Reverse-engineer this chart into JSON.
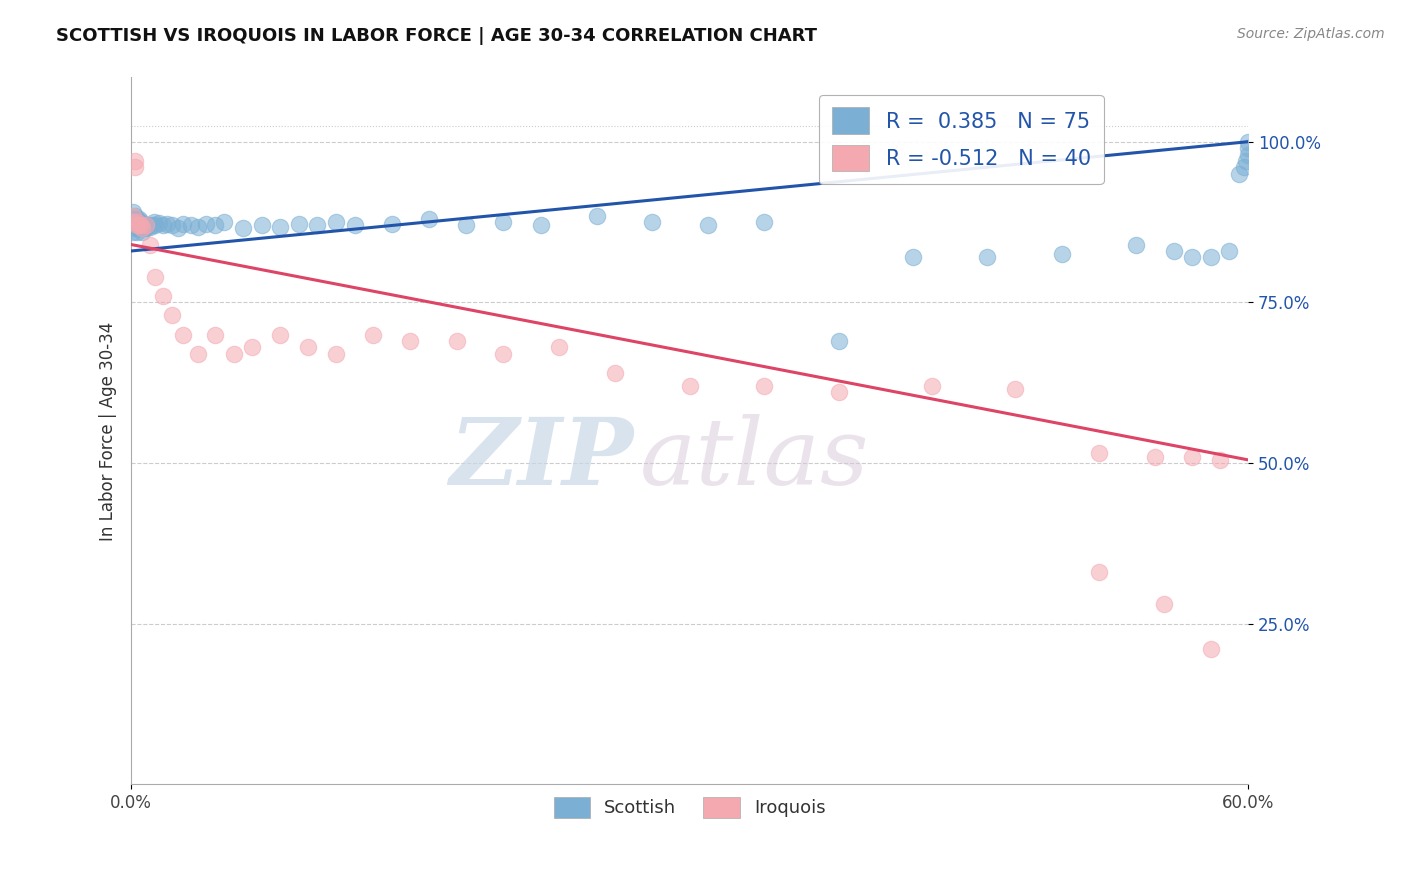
{
  "title": "SCOTTISH VS IROQUOIS IN LABOR FORCE | AGE 30-34 CORRELATION CHART",
  "source_text": "Source: ZipAtlas.com",
  "ylabel_text": "In Labor Force | Age 30-34",
  "x_min": 0.0,
  "x_max": 0.6,
  "y_min": 0.0,
  "y_max": 1.1,
  "y_ticks": [
    0.25,
    0.5,
    0.75,
    1.0
  ],
  "y_tick_labels": [
    "25.0%",
    "50.0%",
    "75.0%",
    "100.0%"
  ],
  "x_ticks": [
    0.0,
    0.6
  ],
  "x_tick_labels": [
    "0.0%",
    "60.0%"
  ],
  "scottish_color": "#7bafd4",
  "iroquois_color": "#f4a8b0",
  "scottish_R": 0.385,
  "scottish_N": 75,
  "iroquois_R": -0.512,
  "iroquois_N": 40,
  "trend_blue": "#2255aa",
  "trend_pink": "#dd4466",
  "watermark_zip": "ZIP",
  "watermark_atlas": "atlas",
  "legend_scottish": "Scottish",
  "legend_iroquois": "Iroquois",
  "scottish_x": [
    0.001,
    0.001,
    0.001,
    0.001,
    0.001,
    0.002,
    0.002,
    0.002,
    0.002,
    0.002,
    0.003,
    0.003,
    0.003,
    0.003,
    0.003,
    0.004,
    0.004,
    0.004,
    0.004,
    0.005,
    0.005,
    0.005,
    0.006,
    0.006,
    0.007,
    0.007,
    0.008,
    0.008,
    0.009,
    0.01,
    0.011,
    0.012,
    0.013,
    0.015,
    0.017,
    0.019,
    0.022,
    0.025,
    0.028,
    0.032,
    0.036,
    0.04,
    0.045,
    0.05,
    0.06,
    0.07,
    0.08,
    0.09,
    0.1,
    0.11,
    0.12,
    0.14,
    0.16,
    0.18,
    0.2,
    0.22,
    0.25,
    0.28,
    0.31,
    0.34,
    0.38,
    0.42,
    0.46,
    0.5,
    0.54,
    0.56,
    0.57,
    0.58,
    0.59,
    0.595,
    0.598,
    0.599,
    0.6,
    0.6,
    0.6
  ],
  "scottish_y": [
    0.875,
    0.88,
    0.89,
    0.87,
    0.86,
    0.875,
    0.885,
    0.88,
    0.865,
    0.87,
    0.875,
    0.88,
    0.87,
    0.865,
    0.86,
    0.875,
    0.88,
    0.87,
    0.865,
    0.87,
    0.865,
    0.875,
    0.87,
    0.86,
    0.87,
    0.865,
    0.87,
    0.865,
    0.87,
    0.868,
    0.87,
    0.875,
    0.87,
    0.873,
    0.87,
    0.872,
    0.87,
    0.865,
    0.872,
    0.87,
    0.868,
    0.872,
    0.87,
    0.875,
    0.865,
    0.87,
    0.868,
    0.872,
    0.87,
    0.875,
    0.87,
    0.872,
    0.88,
    0.87,
    0.875,
    0.87,
    0.885,
    0.875,
    0.87,
    0.875,
    0.69,
    0.82,
    0.82,
    0.825,
    0.84,
    0.83,
    0.82,
    0.82,
    0.83,
    0.95,
    0.96,
    0.97,
    0.98,
    0.99,
    1.0
  ],
  "iroquois_x": [
    0.001,
    0.001,
    0.002,
    0.002,
    0.003,
    0.003,
    0.004,
    0.005,
    0.006,
    0.008,
    0.01,
    0.013,
    0.017,
    0.022,
    0.028,
    0.036,
    0.045,
    0.055,
    0.065,
    0.08,
    0.095,
    0.11,
    0.13,
    0.15,
    0.175,
    0.2,
    0.23,
    0.26,
    0.3,
    0.34,
    0.38,
    0.43,
    0.475,
    0.52,
    0.55,
    0.57,
    0.585,
    0.52,
    0.555,
    0.58
  ],
  "iroquois_y": [
    0.885,
    0.875,
    0.97,
    0.96,
    0.87,
    0.875,
    0.87,
    0.87,
    0.865,
    0.87,
    0.84,
    0.79,
    0.76,
    0.73,
    0.7,
    0.67,
    0.7,
    0.67,
    0.68,
    0.7,
    0.68,
    0.67,
    0.7,
    0.69,
    0.69,
    0.67,
    0.68,
    0.64,
    0.62,
    0.62,
    0.61,
    0.62,
    0.615,
    0.515,
    0.51,
    0.51,
    0.505,
    0.33,
    0.28,
    0.21
  ]
}
